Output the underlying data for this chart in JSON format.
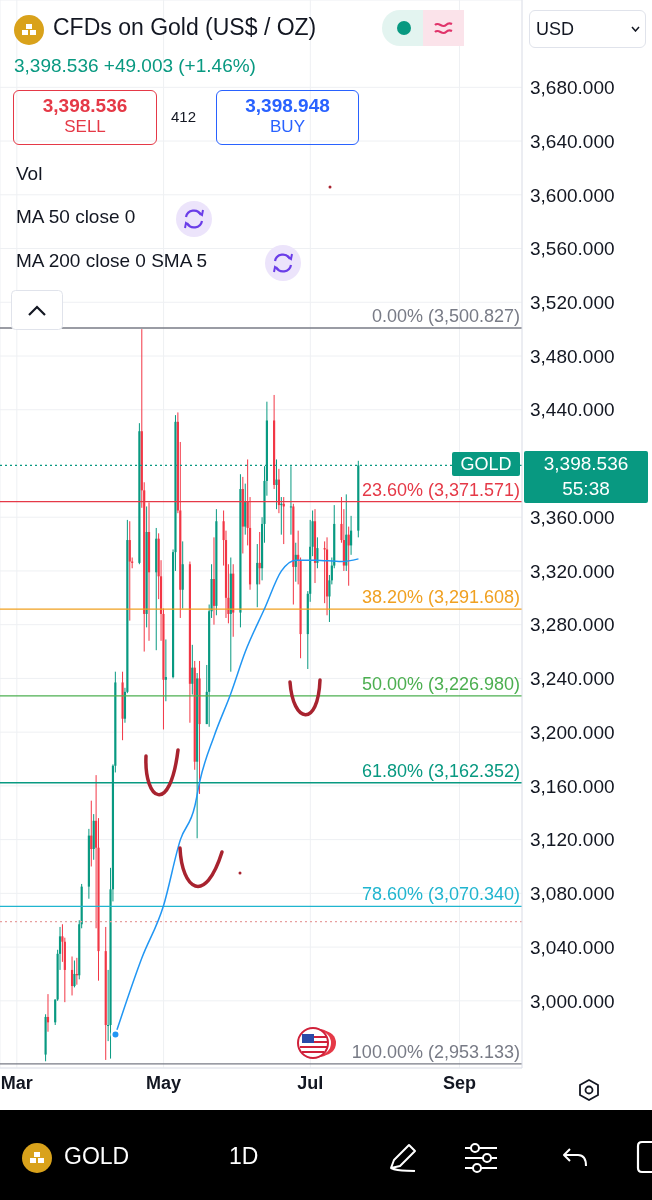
{
  "chart_data": {
    "type": "candlestick",
    "title": "CFDs on Gold (US$ / OZ)",
    "subtitle": "3,398.536 +49.003 (+1.46%)",
    "annotations": [
      "3,398.536",
      "SELL",
      "412",
      "3,398.948",
      "BUY",
      "Vol",
      "MA 50 close 0",
      "MA 200 close 0 SMA 5",
      "USD",
      "3,398.536",
      "55:38",
      "GOLD",
      "1D"
    ],
    "x": [
      "--03-13",
      "--03-14",
      "--03-17",
      "--03-18",
      "--03-19",
      "--03-20",
      "--03-21",
      "--03-24",
      "--03-25",
      "--03-26",
      "--03-27",
      "--03-28",
      "--03-31",
      "--04-01",
      "--04-02",
      "--04-03",
      "--04-04",
      "--04-07",
      "--04-08",
      "--04-09",
      "--04-10",
      "--04-11",
      "--04-14",
      "--04-15",
      "--04-16",
      "--04-17",
      "--04-18",
      "--04-21",
      "--04-22",
      "--04-23",
      "--04-24",
      "--04-25",
      "--04-28",
      "--04-29",
      "--04-30",
      "--05-01",
      "--05-02",
      "--05-05",
      "--05-06",
      "--05-07",
      "--05-08",
      "--05-09",
      "--05-12",
      "--05-13",
      "--05-14",
      "--05-15",
      "--05-16",
      "--05-19",
      "--05-20",
      "--05-21",
      "--05-22",
      "--05-23",
      "--05-26",
      "--05-27",
      "--05-28",
      "--05-29",
      "--05-30",
      "--06-02",
      "--06-03",
      "--06-04",
      "--06-05",
      "--06-06",
      "--06-09",
      "--06-10",
      "--06-11",
      "--06-12",
      "--06-13",
      "--06-16",
      "--06-17",
      "--06-18",
      "--06-19",
      "--06-20",
      "--06-23",
      "--06-24",
      "--06-25",
      "--06-26",
      "--06-27",
      "--06-30",
      "--07-01",
      "--07-02",
      "--07-03",
      "--07-04",
      "--07-07",
      "--07-08",
      "--07-09",
      "--07-10",
      "--07-11",
      "--07-14",
      "--07-15",
      "--07-16",
      "--07-17",
      "--07-18",
      "--07-21"
    ],
    "ohlc": [
      [
        2960,
        2990,
        2955,
        2988
      ],
      [
        2988,
        3005,
        2977,
        2984
      ],
      [
        2984,
        3001,
        2982,
        3001
      ],
      [
        3001,
        3038,
        3000,
        3035
      ],
      [
        3035,
        3055,
        3023,
        3048
      ],
      [
        3048,
        3057,
        3029,
        3044
      ],
      [
        3044,
        3047,
        2999,
        3023
      ],
      [
        3023,
        3033,
        3004,
        3011
      ],
      [
        3011,
        3030,
        3010,
        3020
      ],
      [
        3020,
        3032,
        3012,
        3019
      ],
      [
        3019,
        3060,
        3016,
        3057
      ],
      [
        3057,
        3087,
        3054,
        3085
      ],
      [
        3085,
        3128,
        3076,
        3123
      ],
      [
        3123,
        3149,
        3100,
        3113
      ],
      [
        3113,
        3139,
        3105,
        3134
      ],
      [
        3134,
        3168,
        3054,
        3114
      ],
      [
        3114,
        3136,
        3015,
        3037
      ],
      [
        3037,
        3055,
        2956,
        2982
      ],
      [
        2982,
        3023,
        2970,
        2982
      ],
      [
        2982,
        3099,
        2957,
        3083
      ],
      [
        3083,
        3176,
        3074,
        3175
      ],
      [
        3175,
        3245,
        3170,
        3237
      ],
      [
        3237,
        3245,
        3194,
        3210
      ],
      [
        3210,
        3233,
        3207,
        3230
      ],
      [
        3230,
        3358,
        3229,
        3343
      ],
      [
        3343,
        3357,
        3283,
        3327
      ],
      [
        3327,
        3330,
        3322,
        3326
      ],
      [
        3326,
        3430,
        3325,
        3424
      ],
      [
        3424,
        3500,
        3367,
        3380
      ],
      [
        3380,
        3386,
        3260,
        3288
      ],
      [
        3288,
        3368,
        3278,
        3349
      ],
      [
        3349,
        3371,
        3268,
        3319
      ],
      [
        3319,
        3352,
        3261,
        3344
      ],
      [
        3344,
        3348,
        3299,
        3316
      ],
      [
        3316,
        3328,
        3268,
        3288
      ],
      [
        3288,
        3292,
        3202,
        3239
      ],
      [
        3239,
        3269,
        3223,
        3241
      ],
      [
        3241,
        3336,
        3240,
        3334
      ],
      [
        3334,
        3436,
        3320,
        3431
      ],
      [
        3431,
        3438,
        3363,
        3365
      ],
      [
        3365,
        3416,
        3285,
        3306
      ],
      [
        3306,
        3342,
        3292,
        3325
      ],
      [
        3325,
        3327,
        3207,
        3236
      ],
      [
        3236,
        3265,
        3228,
        3248
      ],
      [
        3248,
        3253,
        3172,
        3178
      ],
      [
        3178,
        3244,
        3121,
        3240
      ],
      [
        3240,
        3253,
        3154,
        3206
      ],
      [
        3206,
        3250,
        3206,
        3230
      ],
      [
        3230,
        3295,
        3204,
        3290
      ],
      [
        3290,
        3325,
        3285,
        3314
      ],
      [
        3314,
        3345,
        3280,
        3294
      ],
      [
        3294,
        3366,
        3287,
        3357
      ],
      [
        3357,
        3365,
        3324,
        3343
      ],
      [
        3343,
        3350,
        3285,
        3300
      ],
      [
        3300,
        3325,
        3281,
        3288
      ],
      [
        3288,
        3330,
        3245,
        3318
      ],
      [
        3318,
        3325,
        3271,
        3289
      ],
      [
        3289,
        3392,
        3278,
        3381
      ],
      [
        3381,
        3390,
        3333,
        3353
      ],
      [
        3353,
        3385,
        3347,
        3372
      ],
      [
        3372,
        3403,
        3339,
        3352
      ],
      [
        3352,
        3375,
        3306,
        3310
      ],
      [
        3310,
        3340,
        3293,
        3326
      ],
      [
        3326,
        3349,
        3310,
        3322
      ],
      [
        3322,
        3360,
        3313,
        3355
      ],
      [
        3355,
        3398,
        3341,
        3387
      ],
      [
        3387,
        3446,
        3376,
        3432
      ],
      [
        3432,
        3451,
        3381,
        3384
      ],
      [
        3384,
        3403,
        3366,
        3388
      ],
      [
        3388,
        3396,
        3363,
        3369
      ],
      [
        3369,
        3375,
        3347,
        3370
      ],
      [
        3370,
        3375,
        3340,
        3368
      ],
      [
        3368,
        3398,
        3347,
        3368
      ],
      [
        3368,
        3370,
        3295,
        3323
      ],
      [
        3323,
        3341,
        3312,
        3332
      ],
      [
        3332,
        3350,
        3310,
        3328
      ],
      [
        3328,
        3330,
        3255,
        3273
      ],
      [
        3273,
        3305,
        3247,
        3303
      ],
      [
        3303,
        3358,
        3297,
        3338
      ],
      [
        3338,
        3365,
        3331,
        3357
      ],
      [
        3357,
        3366,
        3311,
        3326
      ],
      [
        3326,
        3345,
        3322,
        3337
      ],
      [
        3337,
        3342,
        3296,
        3336
      ],
      [
        3336,
        3345,
        3287,
        3301
      ],
      [
        3301,
        3317,
        3282,
        3313
      ],
      [
        3313,
        3330,
        3310,
        3324
      ],
      [
        3324,
        3369,
        3322,
        3355
      ],
      [
        3355,
        3375,
        3341,
        3343
      ],
      [
        3343,
        3366,
        3320,
        3324
      ],
      [
        3324,
        3377,
        3320,
        3347
      ],
      [
        3347,
        3353,
        3309,
        3339
      ],
      [
        3339,
        3361,
        3332,
        3350
      ],
      [
        3350,
        3402,
        3345,
        3398.536
      ]
    ],
    "series": [
      {
        "type": "line",
        "color": "#2196f3",
        "x": [
          "--04-11",
          "--04-22",
          "--05-01",
          "--05-08",
          "--05-14",
          "--05-16",
          "--05-22",
          "--05-29",
          "--06-04",
          "--06-12",
          "--06-19",
          "--06-25",
          "--07-03",
          "--07-14",
          "--07-21"
        ],
        "values": [
          2975,
          3032,
          3071,
          3120,
          3145,
          3163,
          3197,
          3229,
          3260,
          3292,
          3320,
          3328,
          3328,
          3327,
          3329
        ]
      }
    ],
    "xlim": [
      "--02-22",
      "--09-27"
    ],
    "ylim": [
      2950,
      3745
    ],
    "xticks": [
      {
        "value": "--03-01",
        "label": "Mar"
      },
      {
        "value": "--05-01",
        "label": "May"
      },
      {
        "value": "--07-01",
        "label": "Jul"
      },
      {
        "value": "--09-01",
        "label": "Sep"
      }
    ],
    "yticks": [
      {
        "value": 3000,
        "label": "3,000.000"
      },
      {
        "value": 3040,
        "label": "3,040.000"
      },
      {
        "value": 3080,
        "label": "3,080.000"
      },
      {
        "value": 3120,
        "label": "3,120.000"
      },
      {
        "value": 3160,
        "label": "3,160.000"
      },
      {
        "value": 3200,
        "label": "3,200.000"
      },
      {
        "value": 3240,
        "label": "3,240.000"
      },
      {
        "value": 3280,
        "label": "3,280.000"
      },
      {
        "value": 3320,
        "label": "3,320.000"
      },
      {
        "value": 3360,
        "label": "3,360.000"
      },
      {
        "value": 3440,
        "label": "3,440.000"
      },
      {
        "value": 3480,
        "label": "3,480.000"
      },
      {
        "value": 3520,
        "label": "3,520.000"
      },
      {
        "value": 3560,
        "label": "3,560.000"
      },
      {
        "value": 3600,
        "label": "3,600.000"
      },
      {
        "value": 3640,
        "label": "3,640.000"
      },
      {
        "value": 3680,
        "label": "3,680.000"
      }
    ],
    "ref_lines": [
      {
        "axis": "y",
        "value": 3500.827,
        "label": "0.00% (3,500.827)",
        "color": "#787b86",
        "line_style": "solid"
      },
      {
        "axis": "y",
        "value": 3371.571,
        "label": "23.60% (3,371.571)",
        "color": "#e53947",
        "line_style": "solid"
      },
      {
        "axis": "y",
        "value": 3291.608,
        "label": "38.20% (3,291.608)",
        "color": "#f0a020",
        "line_style": "solid"
      },
      {
        "axis": "y",
        "value": 3226.98,
        "label": "50.00% (3,226.980)",
        "color": "#4caf50",
        "line_style": "solid"
      },
      {
        "axis": "y",
        "value": 3162.352,
        "label": "61.80% (3,162.352)",
        "color": "#089981",
        "line_style": "solid"
      },
      {
        "axis": "y",
        "value": 3070.34,
        "label": "78.60% (3,070.340)",
        "color": "#20b5cf",
        "line_style": "solid"
      },
      {
        "axis": "y",
        "value": 2953.133,
        "label": "100.00% (2,953.133)",
        "color": "#787b86",
        "line_style": "solid"
      },
      {
        "axis": "y",
        "value": 3398.536,
        "label": "GOLD",
        "color": "#089981",
        "line_style": "dotted"
      },
      {
        "axis": "y",
        "value": 3059,
        "color": "#e8a0a0",
        "line_style": "dotted"
      }
    ],
    "grid": true
  }
}
